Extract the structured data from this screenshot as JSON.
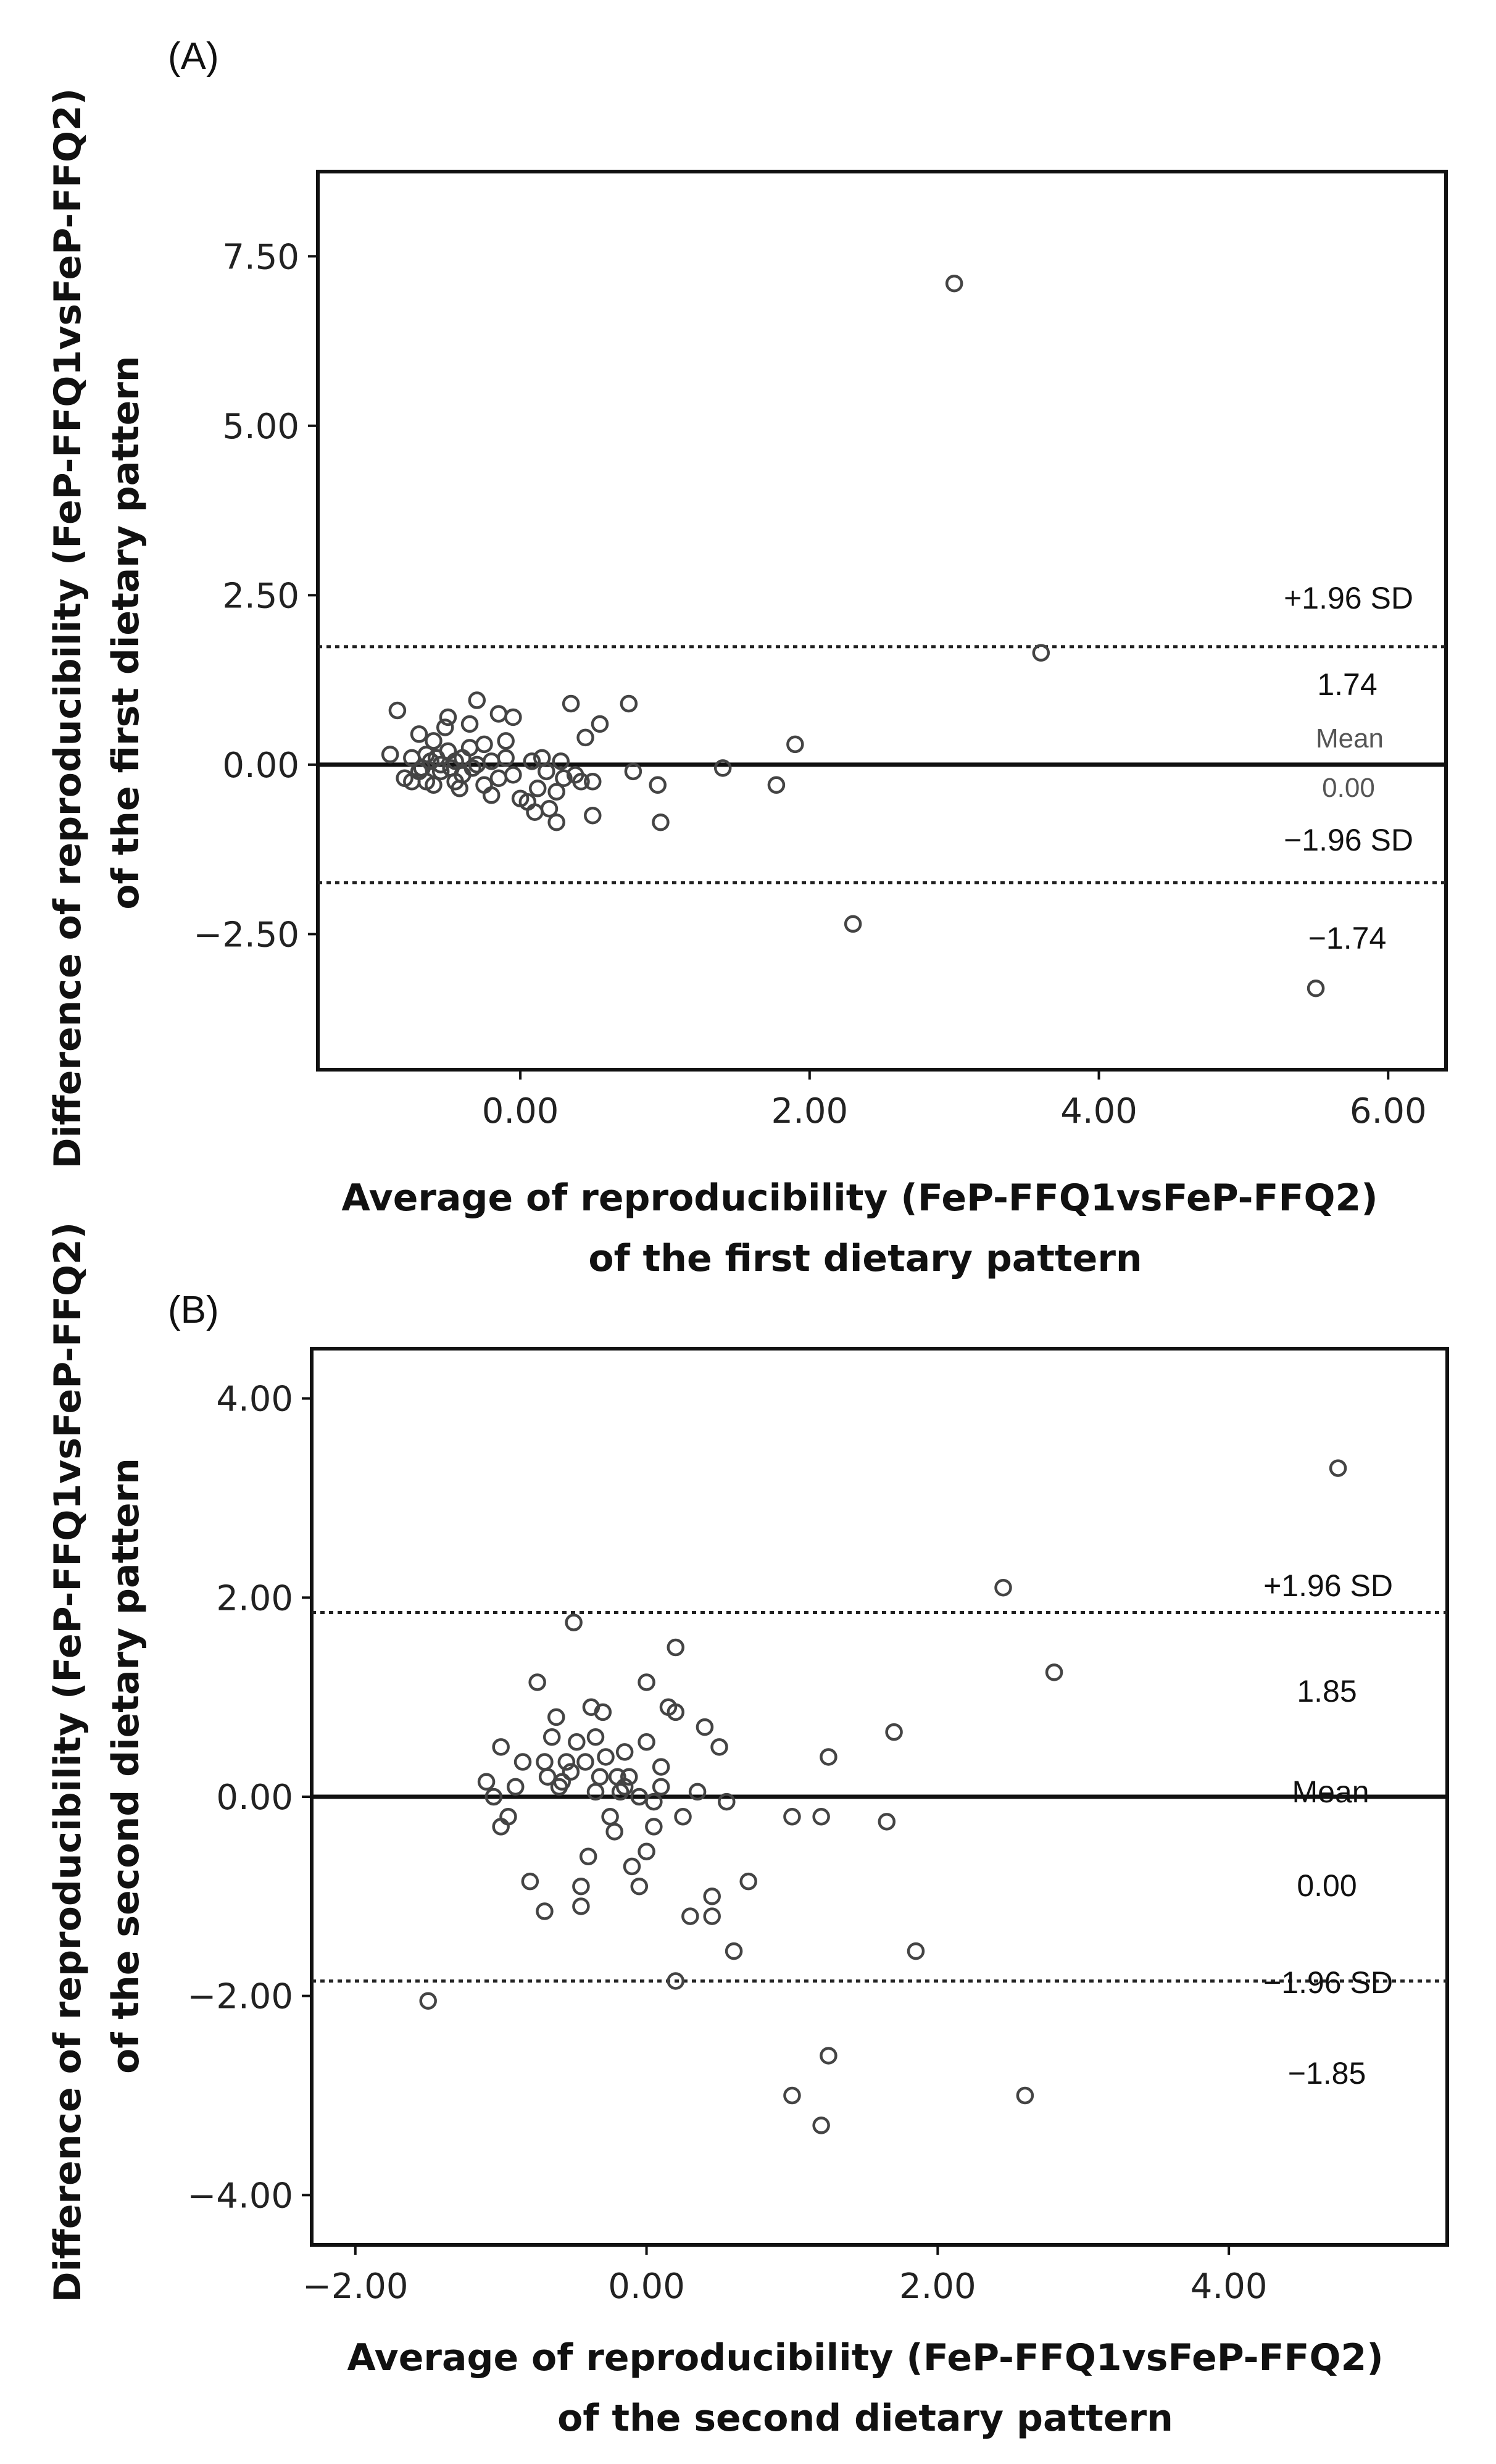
{
  "chart_data": [
    {
      "type": "scatter",
      "panel_label": "(A)",
      "xlabel_line1": "Average of reproducibility (FeP-FFQ1vsFeP-FFQ2)",
      "xlabel_line2": "of the first dietary pattern",
      "ylabel_line1": "Difference of reproducibility (FeP-FFQ1vsFeP-FFQ2)",
      "ylabel_line2": "of the first dietary pattern",
      "xlim": [
        -1.4,
        6.4
      ],
      "ylim": [
        -4.5,
        8.75
      ],
      "xticks": [
        0,
        2,
        4,
        6
      ],
      "xtick_labels": [
        "0.00",
        "2.00",
        "4.00",
        "6.00"
      ],
      "yticks": [
        7.5,
        5,
        2.5,
        0,
        -2.5
      ],
      "ytick_labels": [
        "7.50",
        "5.00",
        "2.50",
        "0.00",
        "−2.50"
      ],
      "mean": 0.0,
      "upper_loa": 1.74,
      "lower_loa": -1.74,
      "annotations": {
        "upper_label": "+1.96 SD",
        "upper_value": "1.74",
        "mean_label": "Mean",
        "mean_value": "0.00",
        "lower_label": "−1.96 SD",
        "lower_value": "−1.74"
      },
      "points": [
        [
          3.0,
          7.1
        ],
        [
          3.6,
          1.65
        ],
        [
          2.3,
          -2.35
        ],
        [
          5.5,
          -3.3
        ],
        [
          1.9,
          0.3
        ],
        [
          1.77,
          -0.3
        ],
        [
          1.4,
          -0.05
        ],
        [
          0.95,
          -0.3
        ],
        [
          0.97,
          -0.85
        ],
        [
          0.75,
          0.9
        ],
        [
          0.78,
          -0.1
        ],
        [
          0.55,
          0.6
        ],
        [
          0.5,
          -0.75
        ],
        [
          0.5,
          -0.25
        ],
        [
          0.45,
          0.4
        ],
        [
          0.42,
          -0.25
        ],
        [
          0.35,
          0.9
        ],
        [
          0.3,
          -0.2
        ],
        [
          0.25,
          -0.4
        ],
        [
          0.25,
          -0.85
        ],
        [
          0.2,
          -0.65
        ],
        [
          0.15,
          0.1
        ],
        [
          0.1,
          -0.7
        ],
        [
          0.05,
          -0.55
        ],
        [
          0.0,
          -0.5
        ],
        [
          -0.05,
          0.7
        ],
        [
          -0.1,
          0.35
        ],
        [
          -0.1,
          0.1
        ],
        [
          -0.15,
          0.75
        ],
        [
          -0.2,
          -0.45
        ],
        [
          -0.25,
          0.3
        ],
        [
          -0.3,
          0.95
        ],
        [
          -0.35,
          0.6
        ],
        [
          -0.4,
          0.1
        ],
        [
          -0.45,
          -0.25
        ],
        [
          -0.5,
          0.7
        ],
        [
          -0.55,
          0.0
        ],
        [
          -0.6,
          -0.3
        ],
        [
          -0.65,
          0.15
        ],
        [
          -0.7,
          0.45
        ],
        [
          -0.75,
          0.1
        ],
        [
          -0.8,
          -0.2
        ],
        [
          -0.85,
          0.8
        ],
        [
          -0.9,
          0.15
        ],
        [
          -0.6,
          0.35
        ],
        [
          -0.55,
          -0.1
        ],
        [
          -0.5,
          0.2
        ],
        [
          -0.45,
          0.05
        ],
        [
          -0.4,
          -0.15
        ],
        [
          -0.35,
          0.25
        ],
        [
          -0.3,
          0.0
        ],
        [
          -0.25,
          -0.3
        ],
        [
          -0.2,
          0.05
        ],
        [
          -0.15,
          -0.2
        ],
        [
          -0.7,
          -0.1
        ],
        [
          -0.65,
          -0.25
        ],
        [
          -0.75,
          -0.25
        ],
        [
          -0.62,
          0.05
        ],
        [
          -0.52,
          0.55
        ],
        [
          -0.42,
          -0.35
        ],
        [
          -0.33,
          -0.05
        ],
        [
          0.08,
          0.05
        ],
        [
          0.18,
          -0.1
        ],
        [
          0.28,
          0.05
        ],
        [
          0.38,
          -0.15
        ],
        [
          0.12,
          -0.35
        ],
        [
          -0.05,
          -0.15
        ],
        [
          -0.48,
          -0.05
        ],
        [
          -0.58,
          0.1
        ],
        [
          -0.68,
          -0.05
        ]
      ]
    },
    {
      "type": "scatter",
      "panel_label": "(B)",
      "xlabel_line1": "Average of reproducibility (FeP-FFQ1vsFeP-FFQ2)",
      "xlabel_line2": "of the second dietary pattern",
      "ylabel_line1": "Difference of reproducibility (FeP-FFQ1vsFeP-FFQ2)",
      "ylabel_line2": "of the second dietary pattern",
      "xlim": [
        -2.3,
        5.5
      ],
      "ylim": [
        -4.5,
        4.5
      ],
      "xticks": [
        -2,
        0,
        2,
        4
      ],
      "xtick_labels": [
        "−2.00",
        "0.00",
        "2.00",
        "4.00"
      ],
      "yticks": [
        4,
        2,
        0,
        -2,
        -4
      ],
      "ytick_labels": [
        "4.00",
        "2.00",
        "0.00",
        "−2.00",
        "−4.00"
      ],
      "mean": 0.0,
      "upper_loa": 1.85,
      "lower_loa": -1.85,
      "annotations": {
        "upper_label": "+1.96 SD",
        "upper_value": "1.85",
        "mean_label": "Mean",
        "mean_value": "0.00",
        "lower_label": "−1.96 SD",
        "lower_value": "−1.85"
      },
      "points": [
        [
          4.75,
          3.3
        ],
        [
          2.45,
          2.1
        ],
        [
          2.8,
          1.25
        ],
        [
          1.7,
          0.65
        ],
        [
          1.85,
          -1.55
        ],
        [
          2.6,
          -3.0
        ],
        [
          1.65,
          -0.25
        ],
        [
          1.2,
          -0.2
        ],
        [
          1.25,
          0.4
        ],
        [
          1.0,
          -0.2
        ],
        [
          1.25,
          -2.6
        ],
        [
          1.2,
          -3.3
        ],
        [
          1.0,
          -3.0
        ],
        [
          0.7,
          -0.85
        ],
        [
          0.6,
          -1.55
        ],
        [
          0.55,
          -0.05
        ],
        [
          0.5,
          0.5
        ],
        [
          0.45,
          -1.0
        ],
        [
          0.45,
          -1.2
        ],
        [
          0.4,
          0.7
        ],
        [
          0.3,
          -1.2
        ],
        [
          0.2,
          -1.85
        ],
        [
          0.2,
          1.5
        ],
        [
          0.2,
          0.85
        ],
        [
          0.15,
          0.9
        ],
        [
          0.1,
          0.1
        ],
        [
          0.05,
          -0.3
        ],
        [
          0.0,
          1.15
        ],
        [
          0.0,
          0.55
        ],
        [
          0.0,
          -0.55
        ],
        [
          -0.05,
          -0.9
        ],
        [
          -0.1,
          -0.7
        ],
        [
          -0.15,
          0.45
        ],
        [
          -0.2,
          0.2
        ],
        [
          -0.25,
          -0.2
        ],
        [
          -0.3,
          0.85
        ],
        [
          -0.35,
          0.6
        ],
        [
          -0.4,
          -0.6
        ],
        [
          -0.45,
          -1.1
        ],
        [
          -0.45,
          -0.9
        ],
        [
          -0.5,
          1.75
        ],
        [
          -0.55,
          0.35
        ],
        [
          -0.6,
          0.1
        ],
        [
          -0.65,
          0.6
        ],
        [
          -0.7,
          0.35
        ],
        [
          -0.7,
          -1.15
        ],
        [
          -0.75,
          1.15
        ],
        [
          -0.8,
          -0.85
        ],
        [
          -0.85,
          0.35
        ],
        [
          -0.9,
          0.1
        ],
        [
          -0.95,
          -0.2
        ],
        [
          -1.0,
          -0.3
        ],
        [
          -1.05,
          0.0
        ],
        [
          -1.0,
          0.5
        ],
        [
          -1.1,
          0.15
        ],
        [
          -1.5,
          -2.05
        ],
        [
          -0.62,
          0.8
        ],
        [
          -0.52,
          0.25
        ],
        [
          -0.42,
          0.35
        ],
        [
          -0.35,
          0.05
        ],
        [
          -0.28,
          0.4
        ],
        [
          -0.18,
          0.05
        ],
        [
          -0.12,
          0.2
        ],
        [
          -0.22,
          -0.35
        ],
        [
          -0.32,
          0.2
        ],
        [
          -0.38,
          0.9
        ],
        [
          -0.48,
          0.55
        ],
        [
          -0.58,
          0.15
        ],
        [
          -0.68,
          0.2
        ],
        [
          0.1,
          0.3
        ],
        [
          0.25,
          -0.2
        ],
        [
          0.35,
          0.05
        ],
        [
          -0.05,
          0.0
        ],
        [
          0.05,
          -0.05
        ],
        [
          -0.15,
          0.1
        ]
      ]
    }
  ]
}
